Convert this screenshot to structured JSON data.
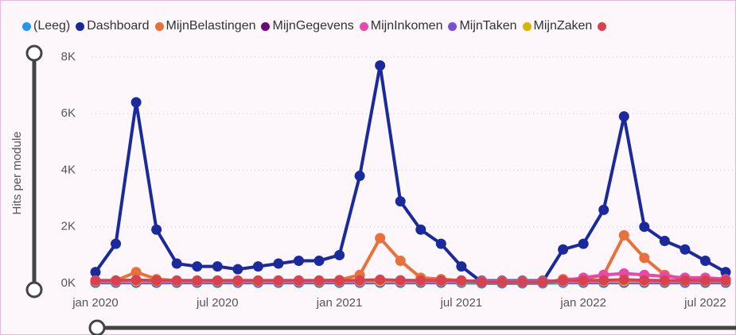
{
  "chart_data": {
    "type": "line",
    "y_axis_label": "Hits per module",
    "x": [
      "2020-01",
      "2020-02",
      "2020-03",
      "2020-04",
      "2020-05",
      "2020-06",
      "2020-07",
      "2020-08",
      "2020-09",
      "2020-10",
      "2020-11",
      "2020-12",
      "2021-01",
      "2021-02",
      "2021-03",
      "2021-04",
      "2021-05",
      "2021-06",
      "2021-07",
      "2021-08",
      "2021-09",
      "2021-10",
      "2021-11",
      "2021-12",
      "2022-01",
      "2022-02",
      "2022-03",
      "2022-04",
      "2022-05",
      "2022-06",
      "2022-07",
      "2022-08"
    ],
    "xlim": [
      "2020-01",
      "2022-08"
    ],
    "xticks": [
      {
        "value": "2020-01",
        "label": "jan 2020"
      },
      {
        "value": "2020-07",
        "label": "jul 2020"
      },
      {
        "value": "2021-01",
        "label": "jan 2021"
      },
      {
        "value": "2021-07",
        "label": "jul 2021"
      },
      {
        "value": "2022-01",
        "label": "jan 2022"
      },
      {
        "value": "2022-07",
        "label": "jul 2022"
      }
    ],
    "ylim": [
      0,
      8500
    ],
    "yticks": [
      {
        "value": 0,
        "label": "0K"
      },
      {
        "value": 2000,
        "label": "2K"
      },
      {
        "value": 4000,
        "label": "4K"
      },
      {
        "value": 6000,
        "label": "6K"
      },
      {
        "value": 8000,
        "label": "8K"
      }
    ],
    "grid": true,
    "series": [
      {
        "name": "(Leeg)",
        "color": "#2196f3",
        "values": [
          20,
          20,
          20,
          20,
          20,
          20,
          20,
          20,
          20,
          20,
          20,
          20,
          20,
          20,
          20,
          20,
          20,
          20,
          20,
          10,
          10,
          10,
          10,
          20,
          20,
          20,
          20,
          20,
          20,
          20,
          20,
          20
        ]
      },
      {
        "name": "Dashboard",
        "color": "#1a2a9c",
        "values": [
          400,
          1400,
          6400,
          1900,
          700,
          600,
          600,
          500,
          600,
          700,
          800,
          800,
          1000,
          3800,
          7700,
          2900,
          1900,
          1400,
          600,
          50,
          40,
          40,
          60,
          1200,
          1400,
          2600,
          5900,
          2000,
          1500,
          1200,
          800,
          400
        ]
      },
      {
        "name": "MijnBelastingen",
        "color": "#e8703a",
        "values": [
          100,
          100,
          400,
          150,
          100,
          100,
          100,
          100,
          100,
          100,
          100,
          100,
          120,
          300,
          1600,
          800,
          200,
          150,
          100,
          0,
          0,
          0,
          0,
          150,
          150,
          300,
          1700,
          900,
          300,
          150,
          120,
          100
        ]
      },
      {
        "name": "MijnGegevens",
        "color": "#6a0a7a",
        "values": [
          30,
          30,
          30,
          30,
          30,
          30,
          30,
          30,
          30,
          30,
          30,
          30,
          30,
          30,
          30,
          30,
          30,
          30,
          30,
          20,
          20,
          20,
          20,
          30,
          30,
          30,
          30,
          30,
          30,
          30,
          30,
          30
        ]
      },
      {
        "name": "MijnInkomen",
        "color": "#e64aa8",
        "values": [
          50,
          50,
          60,
          50,
          50,
          50,
          50,
          50,
          50,
          50,
          50,
          50,
          50,
          60,
          80,
          60,
          50,
          50,
          50,
          30,
          30,
          30,
          30,
          100,
          200,
          300,
          350,
          300,
          250,
          200,
          200,
          150
        ]
      },
      {
        "name": "MijnTaken",
        "color": "#7b4fd0",
        "values": [
          40,
          40,
          40,
          40,
          40,
          40,
          40,
          40,
          40,
          40,
          40,
          40,
          40,
          40,
          40,
          40,
          40,
          40,
          60,
          100,
          100,
          100,
          100,
          60,
          40,
          40,
          40,
          40,
          40,
          40,
          40,
          40
        ]
      },
      {
        "name": "MijnZaken",
        "color": "#d9b300",
        "values": [
          80,
          80,
          80,
          80,
          80,
          80,
          80,
          80,
          80,
          80,
          80,
          80,
          80,
          80,
          80,
          80,
          80,
          80,
          80,
          60,
          60,
          60,
          60,
          80,
          80,
          80,
          80,
          80,
          80,
          80,
          80,
          80
        ]
      },
      {
        "color": "#d9414f",
        "values": [
          100,
          100,
          120,
          100,
          100,
          100,
          100,
          100,
          100,
          100,
          100,
          100,
          100,
          110,
          130,
          110,
          100,
          100,
          100,
          50,
          50,
          50,
          50,
          100,
          100,
          110,
          130,
          110,
          100,
          100,
          100,
          100
        ]
      }
    ]
  }
}
